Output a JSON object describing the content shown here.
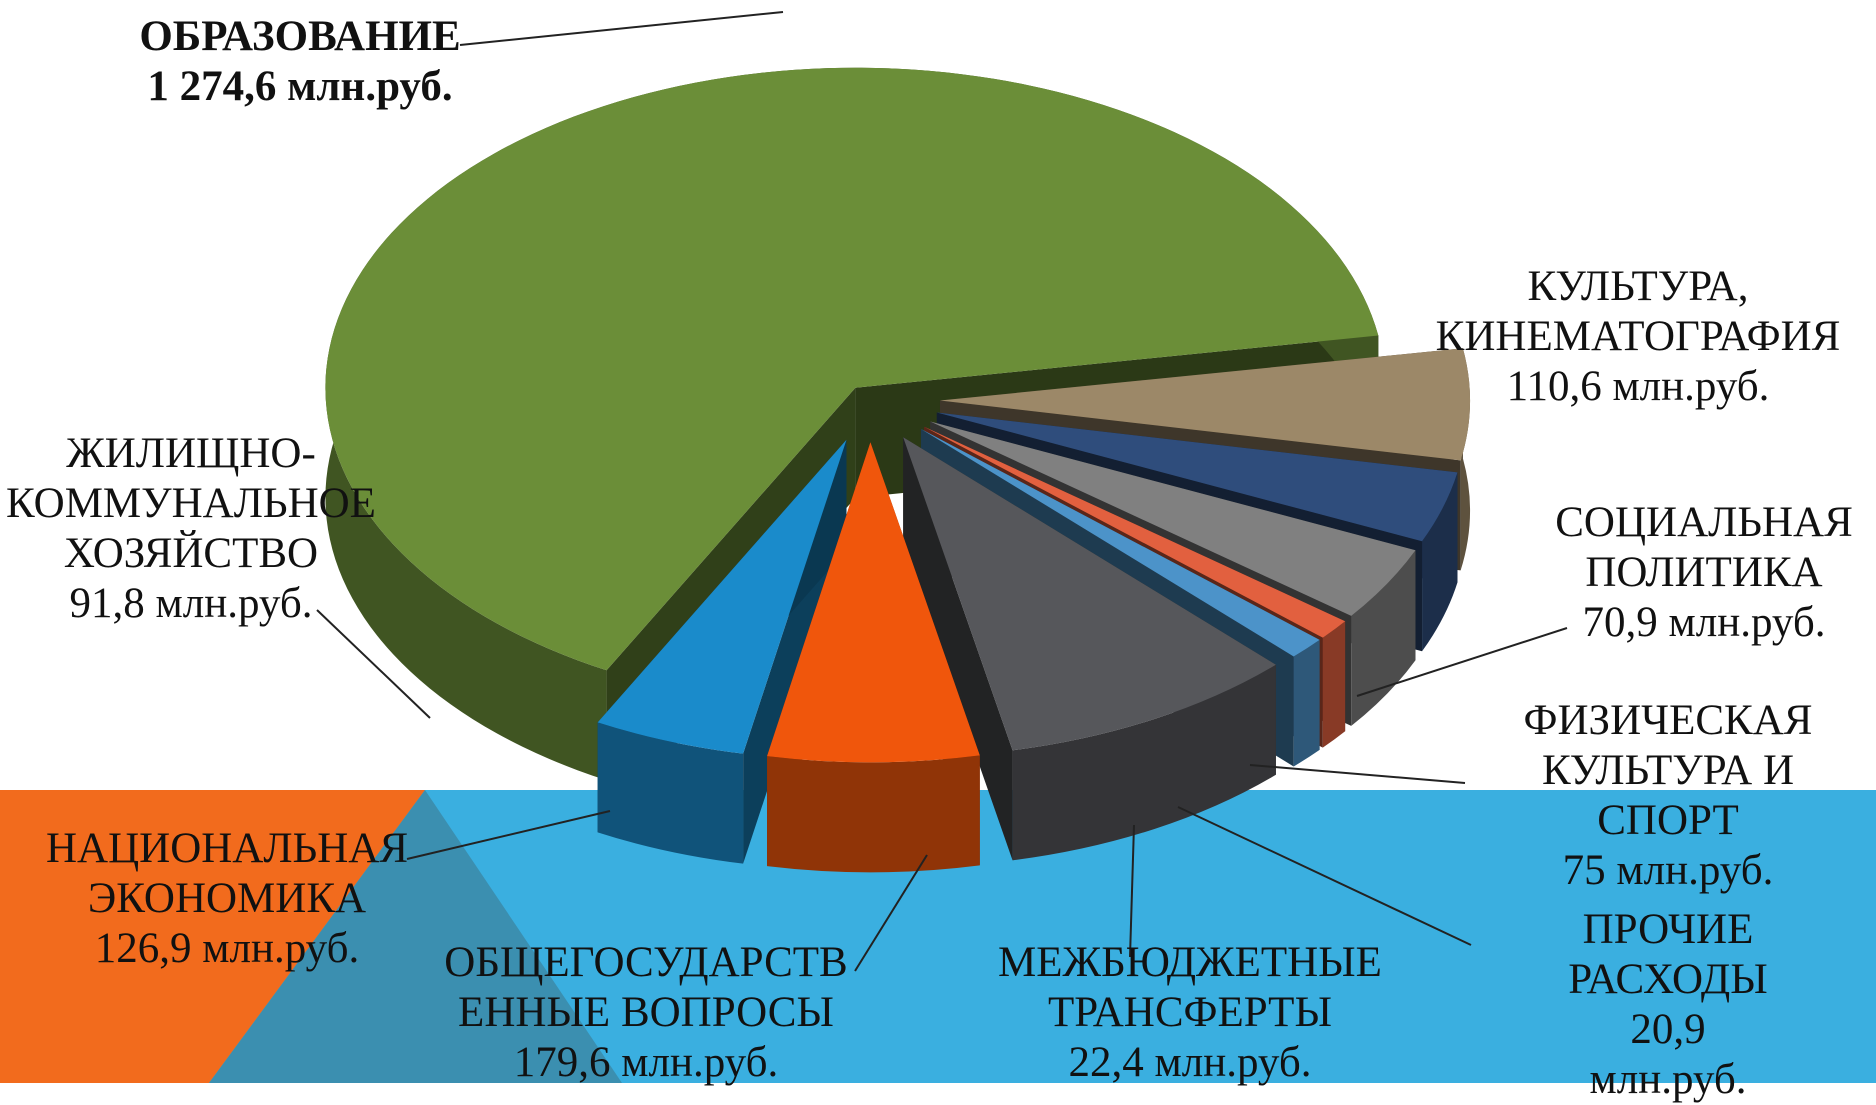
{
  "chart_data": {
    "type": "pie",
    "categories": [
      "ОБРАЗОВАНИЕ",
      "КУЛЬТУРА,\nКИНЕМАТОГРАФИЯ",
      "СОЦИАЛЬНАЯ\nПОЛИТИКА",
      "ФИЗИЧЕСКАЯ\nКУЛЬТУРА И СПОРТ",
      "ПРОЧИЕ РАСХОДЫ",
      "МЕЖБЮДЖЕТНЫЕ\nТРАНСФЕРТЫ",
      "ОБЩЕГОСУДАРСТВ\nЕННЫЕ ВОПРОСЫ",
      "НАЦИОНАЛЬНАЯ\nЭКОНОМИКА",
      "ЖИЛИЩНО-\nКОММУНАЛЬНОЕ\nХОЗЯЙСТВО"
    ],
    "values": [
      1274.6,
      110.6,
      70.9,
      75,
      20.9,
      22.4,
      179.6,
      126.9,
      91.8
    ],
    "value_labels": [
      "1 274,6 млн.руб.",
      "110,6 млн.руб.",
      "70,9 млн.руб.",
      "75 млн.руб.",
      "20,9 млн.руб.",
      "22,4 млн.руб.",
      "179,6 млн.руб.",
      "126,9 млн.руб.",
      "91,8 млн.руб."
    ],
    "colors": [
      "#6b8e38",
      "#9c8868",
      "#2f4d7c",
      "#808080",
      "#e2603f",
      "#4c93c9",
      "#56575b",
      "#f0560c",
      "#1a8bcb"
    ]
  }
}
